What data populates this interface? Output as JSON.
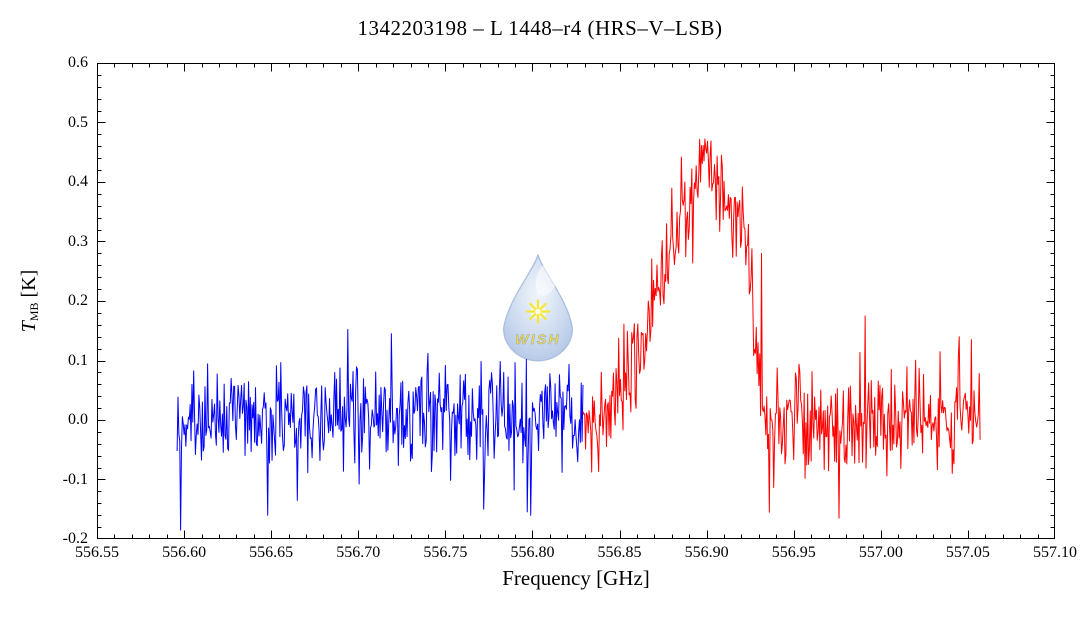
{
  "figure": {
    "title": "1342203198 – L 1448–r4 (HRS–V–LSB)",
    "xlabel": "Frequency [GHz]",
    "ylabel": {
      "symbol": "T",
      "subscript": "MB",
      "unit": "[K]"
    },
    "background": "#ffffff",
    "axis_color": "#000000"
  },
  "watermark": {
    "text": "WISH",
    "drop_fill_light": "#eef4fb",
    "drop_fill_mid": "#c6d6ee",
    "drop_fill_dark": "#9fb9e0",
    "drop_edge": "#90abd6",
    "star_color": "#f2e200",
    "text_color": "#f0dc00"
  },
  "chart_data": {
    "type": "line",
    "title": "1342203198 – L 1448–r4 (HRS–V–LSB)",
    "xlabel": "Frequency [GHz]",
    "ylabel": "T_MB [K]",
    "xlim": [
      556.55,
      557.1
    ],
    "ylim": [
      -0.2,
      0.6
    ],
    "x_major_step": 0.05,
    "x_minor_step": 0.01,
    "y_major_step": 0.1,
    "y_minor_step": 0.02,
    "grid": false,
    "legend": "none",
    "x_ticks": [
      {
        "v": 556.55,
        "label": "556.55"
      },
      {
        "v": 556.6,
        "label": "556.60"
      },
      {
        "v": 556.65,
        "label": "556.65"
      },
      {
        "v": 556.7,
        "label": "556.70"
      },
      {
        "v": 556.75,
        "label": "556.75"
      },
      {
        "v": 556.8,
        "label": "556.80"
      },
      {
        "v": 556.85,
        "label": "556.85"
      },
      {
        "v": 556.9,
        "label": "556.90"
      },
      {
        "v": 556.95,
        "label": "556.95"
      },
      {
        "v": 557.0,
        "label": "557.00"
      },
      {
        "v": 557.05,
        "label": "557.05"
      },
      {
        "v": 557.1,
        "label": "557.10"
      }
    ],
    "y_ticks": [
      {
        "v": 0.6,
        "label": "0.6"
      },
      {
        "v": 0.5,
        "label": "0.5"
      },
      {
        "v": 0.4,
        "label": "0.4"
      },
      {
        "v": 0.3,
        "label": "0.3"
      },
      {
        "v": 0.2,
        "label": "0.2"
      },
      {
        "v": 0.1,
        "label": "0.1"
      },
      {
        "v": 0.0,
        "label": "0.0"
      },
      {
        "v": -0.1,
        "label": "-0.1"
      },
      {
        "v": -0.2,
        "label": "-0.2"
      }
    ],
    "emission_line": {
      "center_ghz": 556.897,
      "peak_T_K": 0.505,
      "fwhm_ghz": 0.055
    },
    "series": [
      {
        "name": "spectrum-blue-segment",
        "color": "#0000ff",
        "x_start": 556.596,
        "x_end": 556.829,
        "channel_ghz": 0.0005,
        "baseline_K": 0.006,
        "noise_sigma_K": 0.042,
        "tail_prob": 0.03,
        "tail_mult": 1.8,
        "seed": 20111448,
        "line_profile": [],
        "spikes": [
          [
            556.598,
            -0.185
          ],
          [
            556.648,
            -0.16
          ],
          [
            556.665,
            -0.135
          ],
          [
            556.719,
            0.145
          ],
          [
            556.772,
            -0.15
          ],
          [
            556.799,
            -0.16
          ]
        ]
      },
      {
        "name": "spectrum-red-segment",
        "color": "#ff0000",
        "x_start": 556.829,
        "x_end": 557.057,
        "channel_ghz": 0.0005,
        "baseline_K": 0.002,
        "noise_sigma_K": 0.044,
        "tail_prob": 0.03,
        "tail_mult": 1.8,
        "seed": 55690,
        "line_profile": [
          [
            556.829,
            0.0
          ],
          [
            556.84,
            0.0
          ],
          [
            556.847,
            0.02
          ],
          [
            556.853,
            0.05
          ],
          [
            556.859,
            0.09
          ],
          [
            556.865,
            0.14
          ],
          [
            556.871,
            0.21
          ],
          [
            556.877,
            0.28
          ],
          [
            556.883,
            0.33
          ],
          [
            556.889,
            0.36
          ],
          [
            556.894,
            0.4
          ],
          [
            556.898,
            0.42
          ],
          [
            556.902,
            0.4
          ],
          [
            556.907,
            0.37
          ],
          [
            556.912,
            0.36
          ],
          [
            556.917,
            0.345
          ],
          [
            556.922,
            0.33
          ],
          [
            556.925,
            0.27
          ],
          [
            556.9275,
            0.15
          ],
          [
            556.93,
            0.04
          ],
          [
            556.933,
            0.0
          ],
          [
            557.057,
            0.0
          ]
        ],
        "spikes": [
          [
            556.9315,
            0.28
          ],
          [
            556.936,
            -0.155
          ],
          [
            556.976,
            -0.165
          ],
          [
            556.991,
            0.175
          ],
          [
            557.045,
            0.14
          ],
          [
            557.052,
            0.135
          ]
        ]
      }
    ]
  }
}
